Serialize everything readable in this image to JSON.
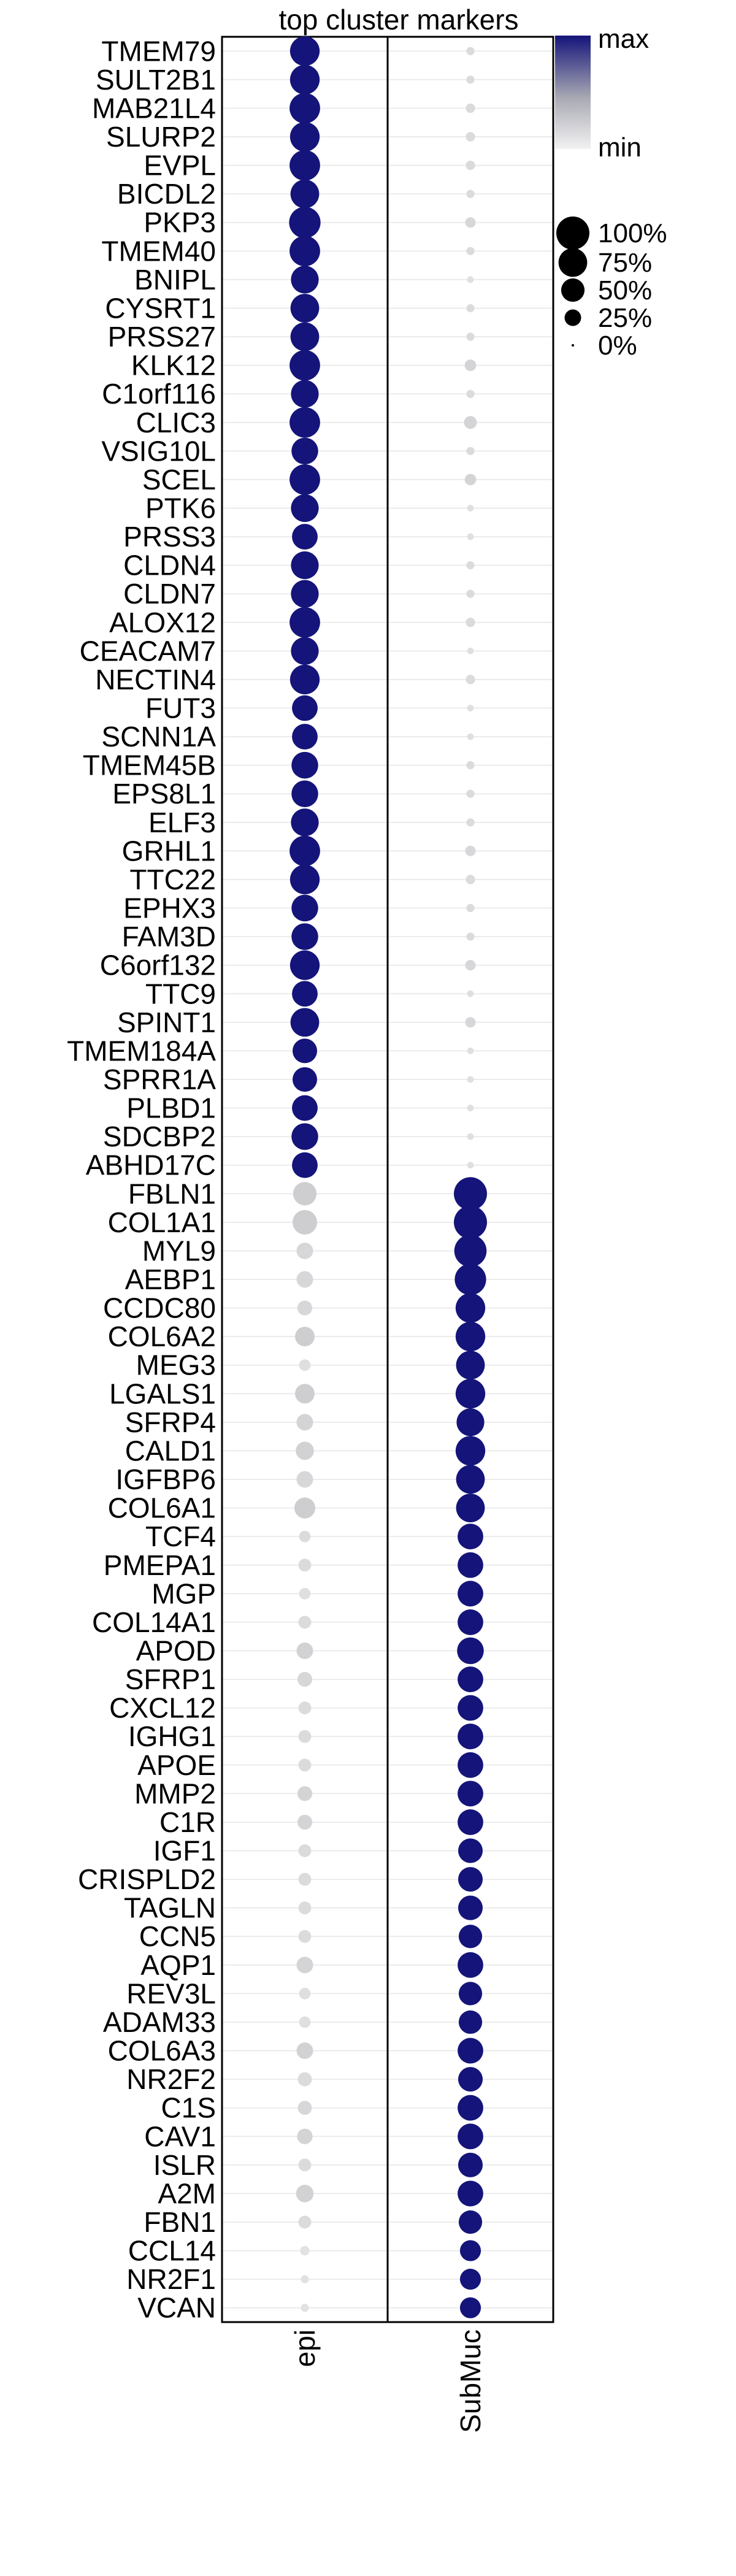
{
  "chart_data": {
    "type": "dotplot",
    "title": "top cluster markers",
    "clusters": [
      "epi",
      "SubMuc"
    ],
    "genes": [
      "TMEM79",
      "SULT2B1",
      "MAB21L4",
      "SLURP2",
      "EVPL",
      "BICDL2",
      "PKP3",
      "TMEM40",
      "BNIPL",
      "CYSRT1",
      "PRSS27",
      "KLK12",
      "C1orf116",
      "CLIC3",
      "VSIG10L",
      "SCEL",
      "PTK6",
      "PRSS3",
      "CLDN4",
      "CLDN7",
      "ALOX12",
      "CEACAM7",
      "NECTIN4",
      "FUT3",
      "SCNN1A",
      "TMEM45B",
      "EPS8L1",
      "ELF3",
      "GRHL1",
      "TTC22",
      "EPHX3",
      "FAM3D",
      "C6orf132",
      "TTC9",
      "SPINT1",
      "TMEM184A",
      "SPRR1A",
      "PLBD1",
      "SDCBP2",
      "ABHD17C",
      "FBLN1",
      "COL1A1",
      "MYL9",
      "AEBP1",
      "CCDC80",
      "COL6A2",
      "MEG3",
      "LGALS1",
      "SFRP4",
      "CALD1",
      "IGFBP6",
      "COL6A1",
      "TCF4",
      "PMEPA1",
      "MGP",
      "COL14A1",
      "APOD",
      "SFRP1",
      "CXCL12",
      "IGHG1",
      "APOE",
      "MMP2",
      "C1R",
      "IGF1",
      "CRISPLD2",
      "TAGLN",
      "CCN5",
      "AQP1",
      "REV3L",
      "ADAM33",
      "COL6A3",
      "NR2F2",
      "C1S",
      "CAV1",
      "ISLR",
      "A2M",
      "FBN1",
      "CCL14",
      "NR2F1",
      "VCAN"
    ],
    "pct_expressed": {
      "epi": [
        80,
        80,
        85,
        80,
        85,
        75,
        90,
        85,
        70,
        75,
        75,
        85,
        70,
        85,
        65,
        85,
        70,
        60,
        70,
        70,
        85,
        70,
        80,
        60,
        60,
        65,
        65,
        70,
        85,
        80,
        65,
        65,
        80,
        60,
        75,
        55,
        55,
        60,
        65,
        60,
        50,
        55,
        25,
        25,
        20,
        35,
        12,
        35,
        25,
        30,
        25,
        40,
        12,
        15,
        12,
        15,
        25,
        20,
        15,
        15,
        15,
        20,
        20,
        15,
        15,
        15,
        15,
        25,
        12,
        12,
        25,
        18,
        18,
        22,
        15,
        28,
        15,
        8,
        6,
        6
      ],
      "SubMuc": [
        6,
        6,
        8,
        8,
        8,
        6,
        10,
        6,
        4,
        6,
        6,
        12,
        6,
        15,
        6,
        12,
        4,
        4,
        6,
        6,
        8,
        4,
        8,
        4,
        4,
        6,
        6,
        6,
        10,
        8,
        6,
        6,
        10,
        4,
        10,
        4,
        4,
        4,
        4,
        4,
        100,
        100,
        95,
        90,
        80,
        80,
        75,
        80,
        70,
        80,
        75,
        75,
        60,
        60,
        60,
        60,
        65,
        60,
        60,
        60,
        60,
        60,
        60,
        55,
        55,
        55,
        50,
        60,
        50,
        50,
        60,
        55,
        60,
        60,
        55,
        60,
        50,
        40,
        40,
        40
      ]
    },
    "avg_exp_scaled": {
      "epi": [
        1,
        1,
        1,
        1,
        1,
        1,
        1,
        1,
        1,
        1,
        1,
        1,
        1,
        1,
        1,
        1,
        1,
        1,
        1,
        1,
        1,
        1,
        1,
        1,
        1,
        1,
        1,
        1,
        1,
        1,
        1,
        1,
        1,
        1,
        1,
        1,
        1,
        1,
        1,
        1,
        0.25,
        0.25,
        0.18,
        0.18,
        0.18,
        0.25,
        0.12,
        0.25,
        0.2,
        0.22,
        0.18,
        0.25,
        0.15,
        0.15,
        0.12,
        0.15,
        0.22,
        0.18,
        0.15,
        0.15,
        0.15,
        0.2,
        0.2,
        0.15,
        0.15,
        0.15,
        0.15,
        0.2,
        0.12,
        0.12,
        0.22,
        0.15,
        0.18,
        0.2,
        0.15,
        0.22,
        0.15,
        0.1,
        0.1,
        0.1
      ],
      "SubMuc": [
        0.15,
        0.15,
        0.15,
        0.15,
        0.15,
        0.15,
        0.18,
        0.15,
        0.12,
        0.15,
        0.15,
        0.2,
        0.15,
        0.2,
        0.15,
        0.2,
        0.12,
        0.12,
        0.15,
        0.15,
        0.15,
        0.12,
        0.15,
        0.12,
        0.12,
        0.15,
        0.15,
        0.15,
        0.18,
        0.15,
        0.15,
        0.15,
        0.18,
        0.12,
        0.18,
        0.12,
        0.12,
        0.12,
        0.12,
        0.12,
        1,
        1,
        1,
        1,
        1,
        1,
        1,
        1,
        1,
        1,
        1,
        1,
        1,
        1,
        1,
        1,
        1,
        1,
        1,
        1,
        1,
        1,
        1,
        1,
        1,
        1,
        1,
        1,
        1,
        1,
        1,
        1,
        1,
        1,
        1,
        1,
        1,
        1,
        1,
        1
      ]
    },
    "xlabel": "",
    "ylabel": "",
    "grid": true,
    "color_legend": {
      "max_label": "max",
      "min_label": "min",
      "max_color": "#14147a",
      "min_color": "#f0f0f0"
    },
    "size_legend": {
      "labels": [
        "100%",
        "75%",
        "50%",
        "25%",
        "0%"
      ],
      "values": [
        100,
        75,
        50,
        25,
        0
      ]
    }
  }
}
